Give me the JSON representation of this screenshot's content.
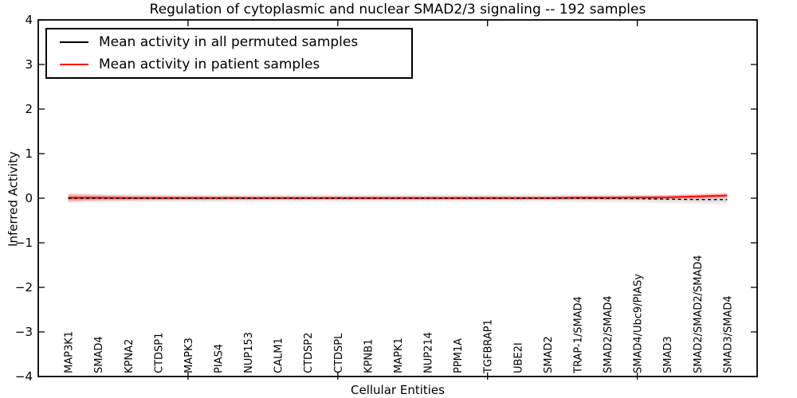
{
  "chart_data": {
    "type": "line",
    "title": "Regulation of cytoplasmic and nuclear SMAD2/3 signaling -- 192 samples",
    "xlabel": "Cellular Entities",
    "ylabel": "Inferred Activity",
    "ylim": [
      -4,
      4
    ],
    "yticks": [
      4,
      3,
      2,
      1,
      0,
      -1,
      -2,
      -3,
      -4
    ],
    "xtick_indices": [
      4,
      9,
      14,
      19
    ],
    "grid": false,
    "legend_position": "upper left",
    "categories": [
      "MAP3K1",
      "SMAD4",
      "KPNA2",
      "CTDSP1",
      "MAPK3",
      "PIAS4",
      "NUP153",
      "CALM1",
      "CTDSP2",
      "CTDSPL",
      "KPNB1",
      "MAPK1",
      "NUP214",
      "PPM1A",
      "TGFBRAP1",
      "UBE2I",
      "SMAD2",
      "TRAP-1/SMAD4",
      "SMAD2/SMAD4",
      "SMAD4/Ubc9/PIASy",
      "SMAD3",
      "SMAD2/SMAD2/SMAD4",
      "SMAD3/SMAD4"
    ],
    "series": [
      {
        "name": "Mean activity in all permuted samples",
        "color": "#000000",
        "line_style": "dashed",
        "values": [
          0.0,
          0.0,
          0.0,
          0.0,
          0.0,
          0.0,
          0.0,
          0.0,
          0.0,
          0.0,
          0.0,
          0.0,
          0.0,
          0.0,
          0.0,
          0.0,
          0.0,
          0.0,
          -0.005,
          -0.01,
          -0.02,
          -0.03,
          -0.03
        ],
        "band_halfwidth": [
          0.11,
          0.1,
          0.095,
          0.09,
          0.09,
          0.09,
          0.09,
          0.09,
          0.09,
          0.09,
          0.09,
          0.09,
          0.09,
          0.09,
          0.09,
          0.09,
          0.09,
          0.09,
          0.09,
          0.09,
          0.095,
          0.1,
          0.11
        ],
        "band_color": "#999999"
      },
      {
        "name": "Mean activity in patient samples",
        "color": "#ff0000",
        "line_style": "solid",
        "values": [
          0.01,
          0.01,
          0.005,
          0.005,
          0.005,
          0.005,
          0.005,
          0.005,
          0.005,
          0.005,
          0.005,
          0.005,
          0.005,
          0.005,
          0.005,
          0.005,
          0.005,
          0.01,
          0.01,
          0.015,
          0.02,
          0.04,
          0.06
        ],
        "band_halfwidth": [
          0.085,
          0.065,
          0.055,
          0.05,
          0.045,
          0.045,
          0.04,
          0.04,
          0.04,
          0.04,
          0.04,
          0.04,
          0.04,
          0.04,
          0.04,
          0.04,
          0.04,
          0.045,
          0.045,
          0.05,
          0.05,
          0.055,
          0.06
        ],
        "band_color": "#ff0000"
      }
    ]
  }
}
